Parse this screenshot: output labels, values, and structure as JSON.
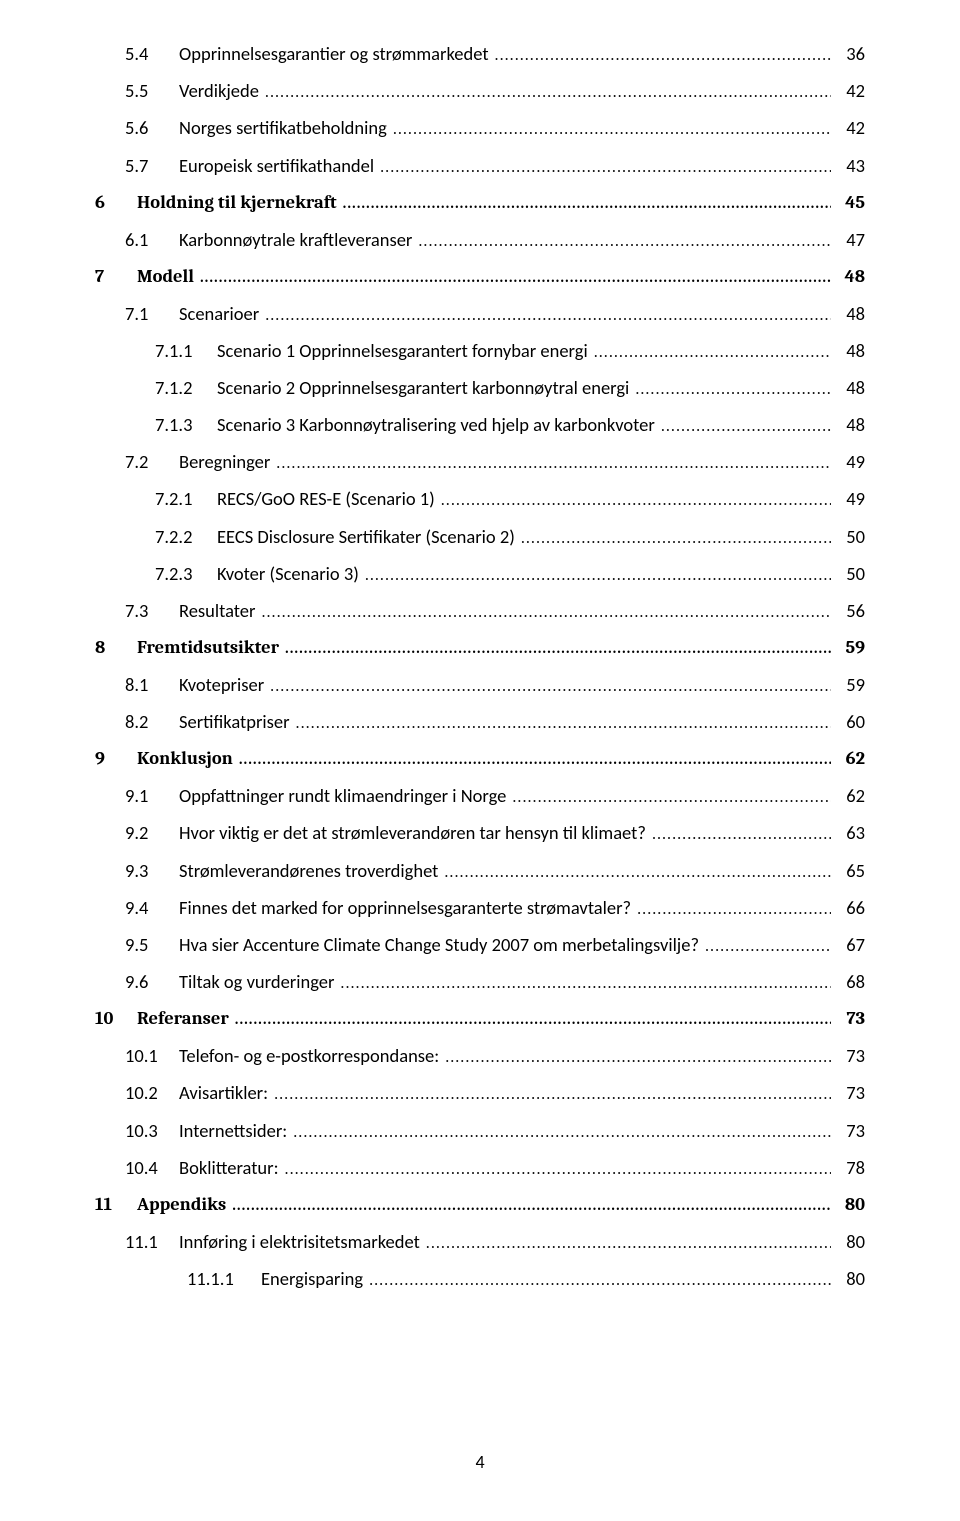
{
  "footer_page_number": "4",
  "toc": [
    {
      "level": 1,
      "style": "regular",
      "num": "5.4",
      "title": "Opprinnelsesgarantier og strømmarkedet",
      "page": "36"
    },
    {
      "level": 1,
      "style": "regular",
      "num": "5.5",
      "title": "Verdikjede",
      "page": "42"
    },
    {
      "level": 1,
      "style": "regular",
      "num": "5.6",
      "title": "Norges sertifikatbeholdning",
      "page": "42"
    },
    {
      "level": 1,
      "style": "regular",
      "num": "5.7",
      "title": "Europeisk sertifikathandel",
      "page": "43"
    },
    {
      "level": 0,
      "style": "bold",
      "num": "6",
      "title": "Holdning til kjernekraft",
      "page": "45"
    },
    {
      "level": 1,
      "style": "regular",
      "num": "6.1",
      "title": "Karbonnøytrale kraftleveranser",
      "page": "47"
    },
    {
      "level": 0,
      "style": "bold",
      "num": "7",
      "title": "Modell",
      "page": "48"
    },
    {
      "level": 1,
      "style": "regular",
      "num": "7.1",
      "title": "Scenarioer",
      "page": "48"
    },
    {
      "level": 2,
      "style": "regular",
      "num": "7.1.1",
      "title": "Scenario 1 Opprinnelsesgarantert fornybar energi",
      "page": "48"
    },
    {
      "level": 2,
      "style": "regular",
      "num": "7.1.2",
      "title": "Scenario 2 Opprinnelsesgarantert karbonnøytral energi",
      "page": "48"
    },
    {
      "level": 2,
      "style": "regular",
      "num": "7.1.3",
      "title": "Scenario 3 Karbonnøytralisering ved hjelp av karbonkvoter",
      "page": "48"
    },
    {
      "level": 1,
      "style": "regular",
      "num": "7.2",
      "title": "Beregninger",
      "page": "49"
    },
    {
      "level": 2,
      "style": "regular",
      "num": "7.2.1",
      "title": "RECS/GoO RES-E (Scenario 1)",
      "page": "49"
    },
    {
      "level": 2,
      "style": "regular",
      "num": "7.2.2",
      "title": "EECS Disclosure Sertifikater (Scenario 2)",
      "page": "50"
    },
    {
      "level": 2,
      "style": "regular",
      "num": "7.2.3",
      "title": "Kvoter (Scenario 3)",
      "page": "50"
    },
    {
      "level": 1,
      "style": "regular",
      "num": "7.3",
      "title": "Resultater",
      "page": "56"
    },
    {
      "level": 0,
      "style": "bold",
      "num": "8",
      "title": "Fremtidsutsikter",
      "page": "59"
    },
    {
      "level": 1,
      "style": "regular",
      "num": "8.1",
      "title": "Kvotepriser",
      "page": "59"
    },
    {
      "level": 1,
      "style": "regular",
      "num": "8.2",
      "title": "Sertifikatpriser",
      "page": "60"
    },
    {
      "level": 0,
      "style": "bold",
      "num": "9",
      "title": "Konklusjon",
      "page": "62"
    },
    {
      "level": 1,
      "style": "regular",
      "num": "9.1",
      "title": "Oppfattninger rundt klimaendringer i Norge",
      "page": "62"
    },
    {
      "level": 1,
      "style": "regular",
      "num": "9.2",
      "title": "Hvor viktig er det at strømleverandøren tar hensyn til klimaet?",
      "page": "63"
    },
    {
      "level": 1,
      "style": "regular",
      "num": "9.3",
      "title": "Strømleverandørenes troverdighet",
      "page": "65"
    },
    {
      "level": 1,
      "style": "regular",
      "num": "9.4",
      "title": "Finnes det marked for opprinnelsesgaranterte strømavtaler?",
      "page": "66"
    },
    {
      "level": 1,
      "style": "regular",
      "num": "9.5",
      "title": "Hva sier Accenture Climate Change Study 2007 om merbetalingsvilje?",
      "page": "67"
    },
    {
      "level": 1,
      "style": "regular",
      "num": "9.6",
      "title": "Tiltak og vurderinger",
      "page": "68"
    },
    {
      "level": 0,
      "style": "bold",
      "num": "10",
      "title": "Referanser",
      "page": "73"
    },
    {
      "level": 1,
      "style": "regular",
      "num": "10.1",
      "title": "Telefon- og e-postkorrespondanse:",
      "page": "73"
    },
    {
      "level": 1,
      "style": "regular",
      "num": "10.2",
      "title": "Avisartikler:",
      "page": "73"
    },
    {
      "level": 1,
      "style": "regular",
      "num": "10.3",
      "title": "Internettsider:",
      "page": "73"
    },
    {
      "level": 1,
      "style": "regular",
      "num": "10.4",
      "title": "Boklitteratur:",
      "page": "78"
    },
    {
      "level": 0,
      "style": "bold",
      "num": "11",
      "title": "Appendiks",
      "page": "80"
    },
    {
      "level": 1,
      "style": "regular",
      "num": "11.1",
      "title": "Innføring i elektrisitetsmarkedet",
      "page": "80"
    },
    {
      "level": 3,
      "style": "regular",
      "num": "11.1.1",
      "title": "Energisparing",
      "page": "80"
    }
  ]
}
